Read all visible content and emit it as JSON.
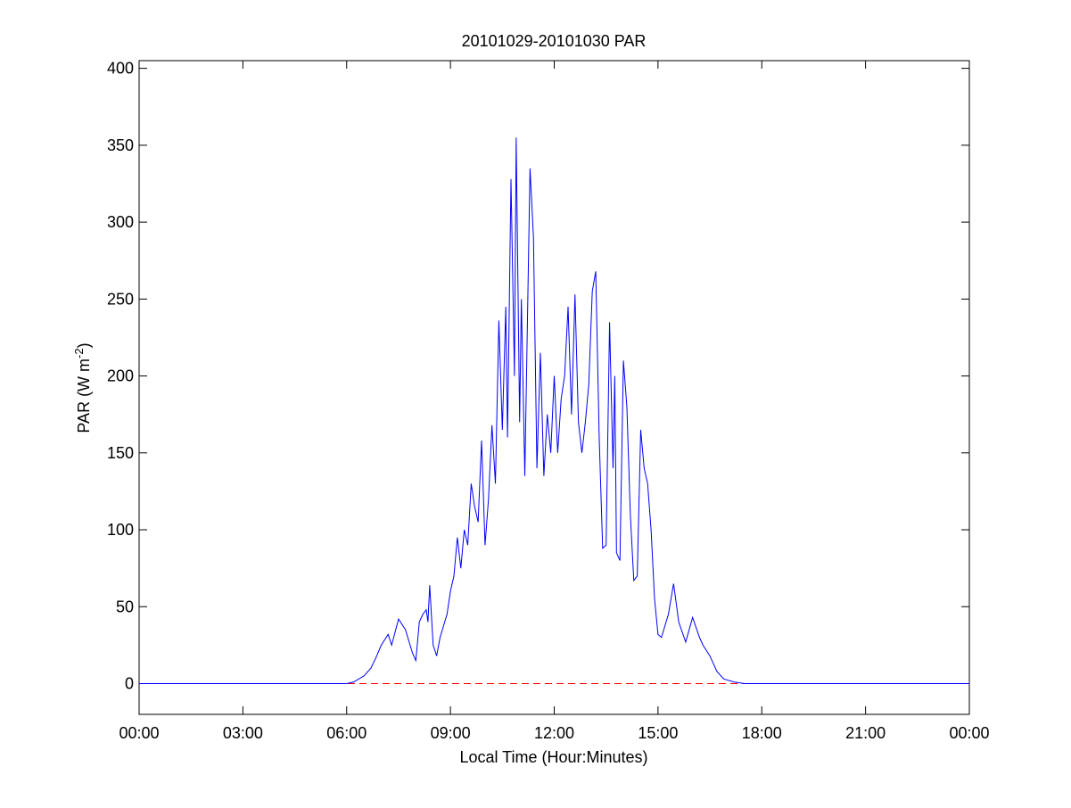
{
  "chart_data": {
    "type": "line",
    "title": "20101029-20101030 PAR",
    "xlabel": "Local Time (Hour:Minutes)",
    "ylabel": "PAR (W m",
    "ylabel_sup": "-2",
    "ylabel_end": ")",
    "xlim": [
      0,
      24
    ],
    "ylim": [
      -20,
      405
    ],
    "xticks": [
      {
        "value": 0,
        "label": "00:00"
      },
      {
        "value": 3,
        "label": "03:00"
      },
      {
        "value": 6,
        "label": "06:00"
      },
      {
        "value": 9,
        "label": "09:00"
      },
      {
        "value": 12,
        "label": "12:00"
      },
      {
        "value": 15,
        "label": "15:00"
      },
      {
        "value": 18,
        "label": "18:00"
      },
      {
        "value": 21,
        "label": "21:00"
      },
      {
        "value": 24,
        "label": "00:00"
      }
    ],
    "yticks": [
      0,
      50,
      100,
      150,
      200,
      250,
      300,
      350,
      400
    ],
    "reference_line": {
      "value": 0,
      "color": "#ff0000",
      "dashed": true
    },
    "series": [
      {
        "color": "#0000ff",
        "x": [
          0,
          6.0,
          6.2,
          6.5,
          6.7,
          6.85,
          7.0,
          7.2,
          7.3,
          7.5,
          7.7,
          7.9,
          8.0,
          8.1,
          8.2,
          8.3,
          8.35,
          8.4,
          8.5,
          8.6,
          8.7,
          8.9,
          9.0,
          9.1,
          9.2,
          9.3,
          9.4,
          9.5,
          9.6,
          9.7,
          9.8,
          9.9,
          10.0,
          10.1,
          10.2,
          10.3,
          10.4,
          10.5,
          10.6,
          10.65,
          10.75,
          10.85,
          10.9,
          11.0,
          11.05,
          11.15,
          11.3,
          11.4,
          11.5,
          11.6,
          11.7,
          11.8,
          11.9,
          12.0,
          12.1,
          12.2,
          12.3,
          12.4,
          12.5,
          12.6,
          12.7,
          12.8,
          12.9,
          13.0,
          13.1,
          13.2,
          13.3,
          13.4,
          13.5,
          13.6,
          13.7,
          13.75,
          13.8,
          13.9,
          14.0,
          14.1,
          14.2,
          14.3,
          14.4,
          14.5,
          14.6,
          14.7,
          14.8,
          14.9,
          15.0,
          15.1,
          15.3,
          15.45,
          15.6,
          15.8,
          16.0,
          16.2,
          16.3,
          16.5,
          16.7,
          16.9,
          17.2,
          17.5,
          24
        ],
        "values": [
          0,
          0,
          1,
          5,
          10,
          17,
          25,
          32,
          25,
          42,
          35,
          20,
          15,
          40,
          45,
          48,
          40,
          64,
          25,
          18,
          30,
          45,
          60,
          70,
          95,
          75,
          100,
          90,
          130,
          115,
          105,
          158,
          90,
          120,
          168,
          130,
          236,
          165,
          245,
          160,
          328,
          200,
          355,
          170,
          250,
          135,
          335,
          290,
          140,
          215,
          135,
          175,
          150,
          200,
          150,
          185,
          200,
          245,
          175,
          253,
          170,
          150,
          170,
          195,
          255,
          268,
          160,
          88,
          90,
          235,
          140,
          200,
          85,
          80,
          210,
          180,
          110,
          67,
          70,
          165,
          140,
          130,
          100,
          55,
          32,
          30,
          45,
          65,
          40,
          27,
          43,
          30,
          25,
          18,
          8,
          3,
          1,
          0,
          0
        ]
      }
    ]
  }
}
